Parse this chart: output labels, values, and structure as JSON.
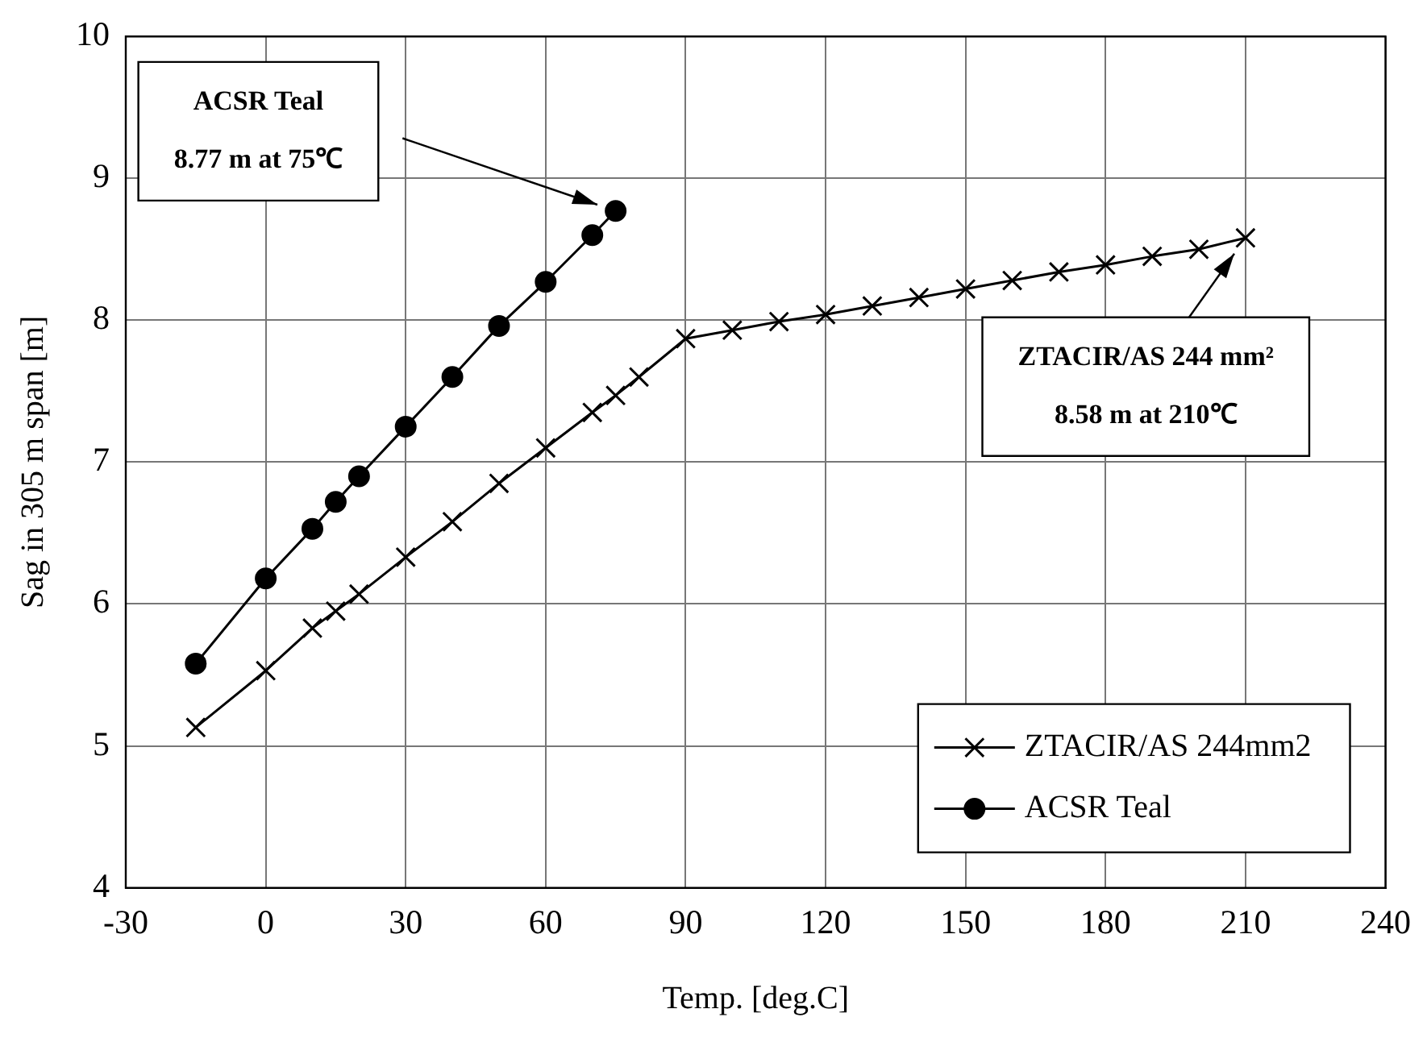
{
  "chart_data": {
    "type": "line",
    "xlabel": "Temp. [deg.C]",
    "ylabel": "Sag in 305 m span [m]",
    "xlim": [
      -30,
      240
    ],
    "xticks": [
      -30,
      0,
      30,
      60,
      90,
      120,
      150,
      180,
      210,
      240
    ],
    "ylim": [
      4,
      10
    ],
    "yticks": [
      4,
      5,
      6,
      7,
      8,
      9,
      10
    ],
    "grid": true,
    "legend": "bottom right",
    "line_style": "solid",
    "series": [
      {
        "name": "ZTACIR/AS 244mm2",
        "color": "#000000",
        "marker": "cross",
        "x": [
          -15,
          0,
          10,
          15,
          20,
          30,
          40,
          50,
          60,
          70,
          75,
          80,
          90,
          100,
          110,
          120,
          130,
          140,
          150,
          160,
          170,
          180,
          190,
          200,
          210
        ],
        "values": [
          5.13,
          5.53,
          5.83,
          5.95,
          6.07,
          6.33,
          6.58,
          6.85,
          7.1,
          7.35,
          7.47,
          7.6,
          7.87,
          7.93,
          7.99,
          8.04,
          8.1,
          8.16,
          8.22,
          8.28,
          8.34,
          8.39,
          8.45,
          8.5,
          8.58
        ]
      },
      {
        "name": "ACSR Teal",
        "color": "#000000",
        "marker": "circle",
        "x": [
          -15,
          0,
          10,
          15,
          20,
          30,
          40,
          50,
          60,
          70,
          75
        ],
        "values": [
          5.58,
          6.18,
          6.53,
          6.72,
          6.9,
          7.25,
          7.6,
          7.96,
          8.27,
          8.6,
          8.77
        ]
      }
    ],
    "annotations": [
      "ACSR Teal\n8.77 m at 75℃",
      "ZTACIR/AS 244 mm²\n8.58 m at 210℃"
    ]
  }
}
